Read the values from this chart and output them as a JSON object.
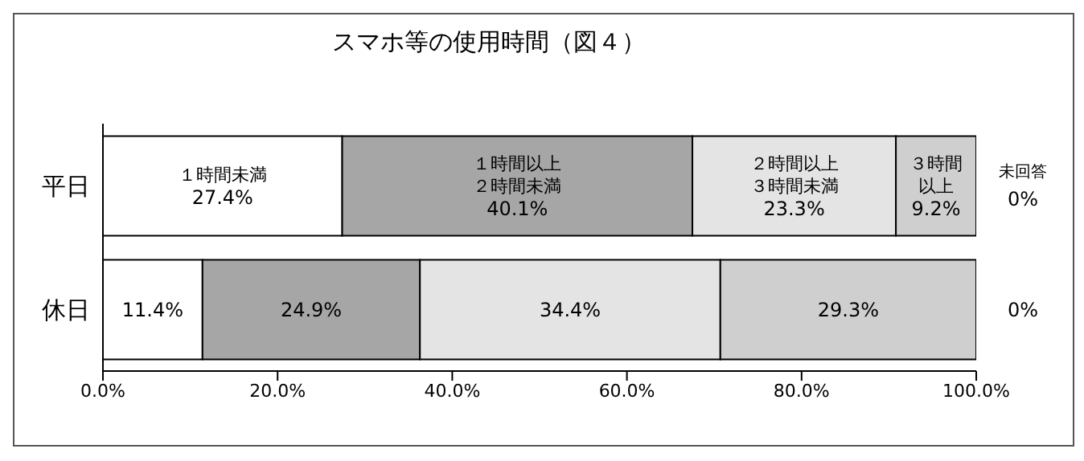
{
  "chart_data": {
    "type": "bar",
    "orientation": "horizontal",
    "stacked": true,
    "title": "スマホ等の使用時間（図４）",
    "categories": [
      "平日",
      "休日"
    ],
    "xlim": [
      0,
      100
    ],
    "xticks": [
      {
        "value": 0,
        "label": "0.0%"
      },
      {
        "value": 20,
        "label": "20.0%"
      },
      {
        "value": 40,
        "label": "40.0%"
      },
      {
        "value": 60,
        "label": "60.0%"
      },
      {
        "value": 80,
        "label": "80.0%"
      },
      {
        "value": 100,
        "label": "100.0%"
      }
    ],
    "series": [
      {
        "name": "１時間未満",
        "color": "#ffffff",
        "values": [
          27.4,
          11.4
        ],
        "value_labels": [
          "27.4%",
          "11.4%"
        ]
      },
      {
        "name": "１時間以上２時間未満",
        "color": "#a6a6a6",
        "values": [
          40.1,
          24.9
        ],
        "value_labels": [
          "40.1%",
          "24.9%"
        ]
      },
      {
        "name": "２時間以上３時間未満",
        "color": "#e4e4e4",
        "values": [
          23.3,
          34.4
        ],
        "value_labels": [
          "23.3%",
          "34.4%"
        ]
      },
      {
        "name": "３時間以上",
        "color": "#cfcfcf",
        "values": [
          9.2,
          29.3
        ],
        "value_labels": [
          "9.2%",
          "29.3%"
        ]
      },
      {
        "name": "未回答",
        "values": [
          0,
          0
        ],
        "value_labels": [
          "0%",
          "0%"
        ]
      }
    ]
  }
}
